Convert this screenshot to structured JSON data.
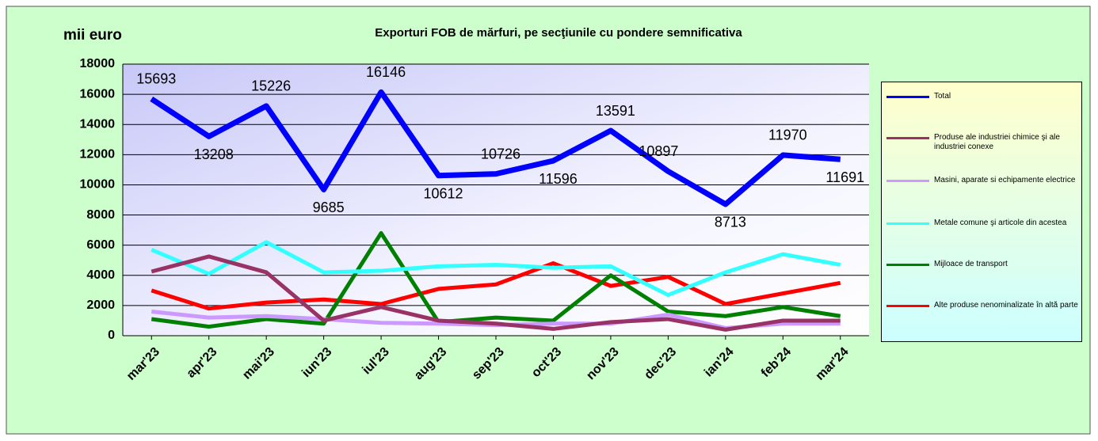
{
  "chart_data": {
    "type": "line",
    "title": "Exporturi FOB de mărfuri, pe secţiunile  cu pondere semnificativa",
    "y_label": "mii euro",
    "categories": [
      "mar'23",
      "apr'23",
      "mai'23",
      "iun'23",
      "iul'23",
      "aug'23",
      "sep'23",
      "oct'23",
      "nov'23",
      "dec'23",
      "ian'24",
      "feb'24",
      "mar'24"
    ],
    "ylim": [
      0,
      18000
    ],
    "yticks": [
      0,
      2000,
      4000,
      6000,
      8000,
      10000,
      12000,
      14000,
      16000,
      18000
    ],
    "grid": true,
    "legend": "right",
    "series": [
      {
        "name": "Total",
        "color": "#0000ff",
        "values": [
          15693,
          13208,
          15226,
          9685,
          16146,
          10612,
          10726,
          11596,
          13591,
          10897,
          8713,
          11970,
          11691
        ],
        "data_labels": true
      },
      {
        "name": "Produse ale industriei chimice şi ale industriei conexe",
        "color": "#993366",
        "values": [
          4250,
          5250,
          4200,
          1000,
          1900,
          1000,
          800,
          450,
          900,
          1100,
          400,
          1000,
          1000
        ]
      },
      {
        "name": "Masini, aparate si echipamente electrice",
        "color": "#cc99ff",
        "values": [
          1600,
          1200,
          1300,
          1100,
          850,
          800,
          700,
          800,
          800,
          1400,
          500,
          800,
          800
        ]
      },
      {
        "name": "Metale comune şi articole din acestea",
        "color": "#33ffff",
        "values": [
          5700,
          4100,
          6200,
          4200,
          4300,
          4600,
          4700,
          4500,
          4600,
          2700,
          4200,
          5400,
          4700
        ]
      },
      {
        "name": "Mijloace de transport",
        "color": "#008000",
        "values": [
          1100,
          600,
          1100,
          800,
          6800,
          900,
          1200,
          1000,
          4000,
          1600,
          1300,
          1900,
          1300
        ]
      },
      {
        "name": "Alte produse nenominalizate în altă parte",
        "color": "#ff0000",
        "values": [
          3000,
          1800,
          2200,
          2400,
          2100,
          3100,
          3400,
          4800,
          3300,
          3900,
          2100,
          2800,
          3500
        ]
      }
    ]
  }
}
